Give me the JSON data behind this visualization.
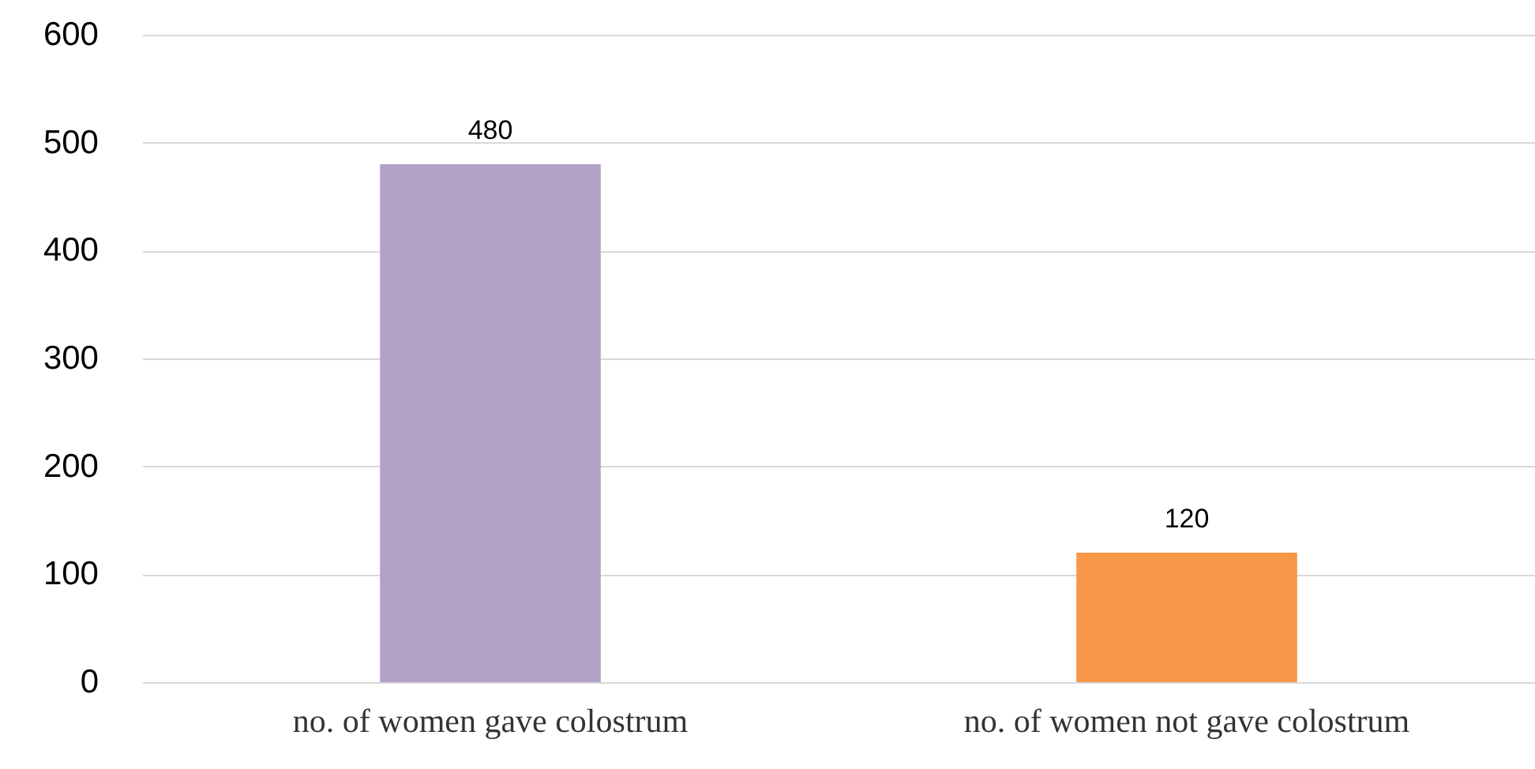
{
  "chart_data": {
    "type": "bar",
    "categories": [
      "no. of women gave colostrum",
      "no. of women not gave colostrum"
    ],
    "values": [
      480,
      120
    ],
    "colors": [
      "#b3a2c7",
      "#f79646"
    ],
    "ylim": [
      0,
      600
    ],
    "yticks": [
      0,
      100,
      200,
      300,
      400,
      500,
      600
    ],
    "grid": "y",
    "data_labels": true
  }
}
